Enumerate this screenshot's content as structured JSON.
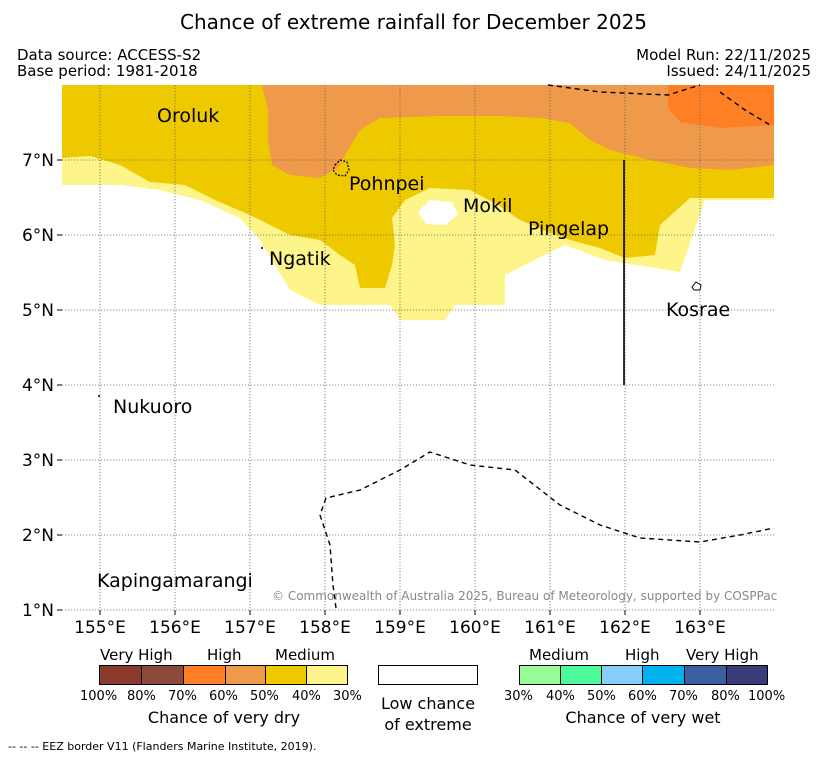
{
  "title": "Chance of extreme rainfall for December 2025",
  "meta": {
    "data_source": "Data source: ACCESS-S2",
    "base_period": "Base period: 1981-2018",
    "model_run": "Model Run: 22/11/2025",
    "issued": "Issued: 24/11/2025"
  },
  "map": {
    "x_ticks": [
      "155°E",
      "156°E",
      "157°E",
      "158°E",
      "159°E",
      "160°E",
      "161°E",
      "162°E",
      "163°E"
    ],
    "y_ticks": [
      "7°N",
      "6°N",
      "5°N",
      "4°N",
      "3°N",
      "2°N",
      "1°N"
    ],
    "places": {
      "oroluk": "Oroluk",
      "pohnpei": "Pohnpei",
      "mokil": "Mokil",
      "pingelap": "Pingelap",
      "ngatik": "Ngatik",
      "kosrae": "Kosrae",
      "nukuoro": "Nukuoro",
      "kapingamarangi": "Kapingamarangi"
    },
    "copyright": "© Commonwealth of Australia 2025, Bureau of Meteorology, supported by COSPPac"
  },
  "legend": {
    "dry": {
      "headings": [
        "Very High",
        "High",
        "Medium"
      ],
      "ticks": [
        "100%",
        "80%",
        "70%",
        "60%",
        "50%",
        "40%",
        "30%"
      ],
      "caption": "Chance of very dry",
      "colors": [
        "#8b3a2e",
        "#8c4a3a",
        "#ff7f24",
        "#ee9a4a",
        "#eec900",
        "#fdf48a"
      ]
    },
    "low": {
      "line1": "Low chance",
      "line2": "of extreme"
    },
    "wet": {
      "headings": [
        "Medium",
        "High",
        "Very High"
      ],
      "ticks": [
        "30%",
        "40%",
        "50%",
        "60%",
        "70%",
        "80%",
        "100%"
      ],
      "caption": "Chance of very wet",
      "colors": [
        "#98fb98",
        "#4dfa9a",
        "#87cefa",
        "#00b2ee",
        "#3a5fa0",
        "#3b3b7a"
      ]
    }
  },
  "eez_note": "--  --  -- EEZ border V11 (Flanders Marine Institute, 2019)."
}
